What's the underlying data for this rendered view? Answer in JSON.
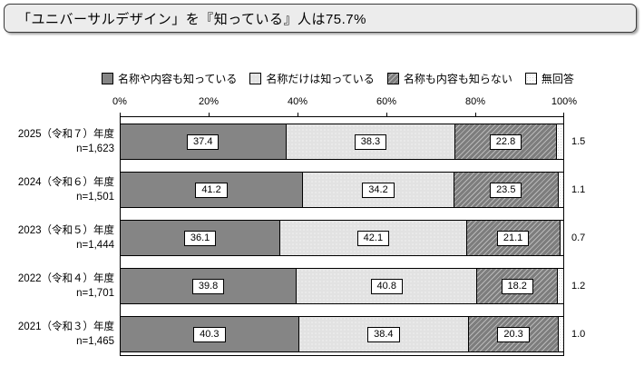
{
  "title": "「ユニバーサルデザイン」を『知っている』人は75.7%",
  "legend": {
    "items": [
      {
        "label": "名称や内容も知っている",
        "swatch": "solid-gray"
      },
      {
        "label": "名称だけは知っている",
        "swatch": "light-dotted"
      },
      {
        "label": "名称も内容も知らない",
        "swatch": "gray-diagonal-hatch"
      },
      {
        "label": "無回答",
        "swatch": "white-dotted"
      }
    ]
  },
  "axis": {
    "ticks": [
      "0%",
      "20%",
      "40%",
      "60%",
      "80%",
      "100%"
    ]
  },
  "chart_data": {
    "type": "bar",
    "orientation": "horizontal-stacked",
    "title": "「ユニバーサルデザイン」を『知っている』人は75.7%",
    "series_names": [
      "名称や内容も知っている",
      "名称だけは知っている",
      "名称も内容も知らない",
      "無回答"
    ],
    "xlim": [
      0,
      100
    ],
    "x_tick_labels": [
      "0%",
      "20%",
      "40%",
      "60%",
      "80%",
      "100%"
    ],
    "legend_position": "top",
    "rows": [
      {
        "label": "2025（令和７）年度",
        "n": "n=1,623",
        "values": [
          "37.4",
          "38.3",
          "22.8",
          "1.5"
        ]
      },
      {
        "label": "2024（令和６）年度",
        "n": "n=1,501",
        "values": [
          "41.2",
          "34.2",
          "23.5",
          "1.1"
        ]
      },
      {
        "label": "2023（令和５）年度",
        "n": "n=1,444",
        "values": [
          "36.1",
          "42.1",
          "21.1",
          "0.7"
        ]
      },
      {
        "label": "2022（令和４）年度",
        "n": "n=1,701",
        "values": [
          "39.8",
          "40.8",
          "18.2",
          "1.2"
        ]
      },
      {
        "label": "2021（令和３）年度",
        "n": "n=1,465",
        "values": [
          "40.3",
          "38.4",
          "20.3",
          "1.0"
        ]
      }
    ],
    "colors": {
      "solid": "#858585",
      "light_dotted": "#e2e2e2",
      "hatched": "#7d7d7d",
      "no_answer": "#fbfbfb",
      "title_box_bg": "#ececec"
    }
  }
}
